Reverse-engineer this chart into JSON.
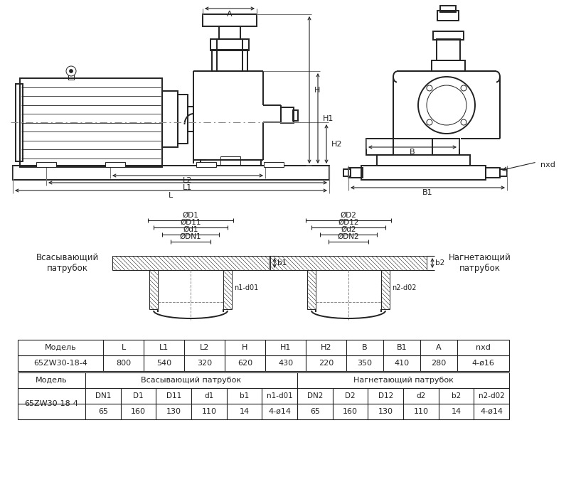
{
  "bg_color": "#ffffff",
  "line_color": "#222222",
  "table1_headers": [
    "Модель",
    "L",
    "L1",
    "L2",
    "H",
    "H1",
    "H2",
    "B",
    "B1",
    "A",
    "nxd"
  ],
  "table1_row": [
    "65ZW30-18-4",
    "800",
    "540",
    "320",
    "620",
    "430",
    "220",
    "350",
    "410",
    "280",
    "4-ø16"
  ],
  "table2_model": "65ZW30-18-4",
  "table2_header_left": "Всасывающий патрубок",
  "table2_header_right": "Нагнетающий патрубок",
  "table2_sub_headers": [
    "DN1",
    "D1",
    "D11",
    "d1",
    "b1",
    "n1-d01",
    "DN2",
    "D2",
    "D12",
    "d2",
    "b2",
    "n2-d02"
  ],
  "table2_values": [
    "65",
    "160",
    "130",
    "110",
    "14",
    "4-ø14",
    "65",
    "160",
    "130",
    "110",
    "14",
    "4-ø14"
  ],
  "label_suction": "Всасывающий\nпатрубок",
  "label_discharge": "Нагнетающий\nпатрубок"
}
